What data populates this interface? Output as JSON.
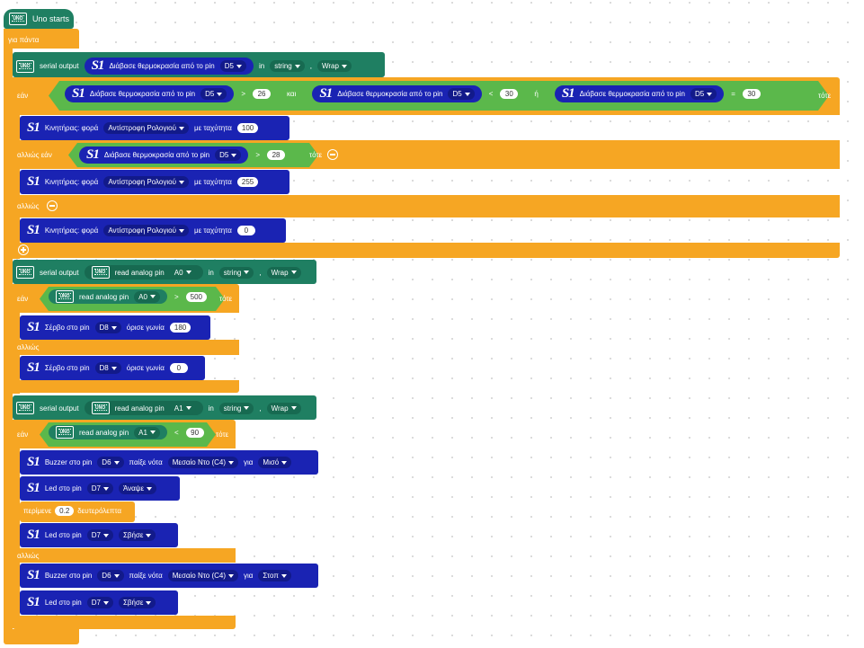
{
  "hat": {
    "label": "Uno starts",
    "board": "UNO"
  },
  "forever": "για πάντα",
  "serial1": {
    "label": "serial output",
    "read": "Διάβασε θερμοκρασία από το pin",
    "pin": "D5",
    "in": "in",
    "fmt": "string",
    "mode": "Wrap"
  },
  "if1": {
    "if": "εάν",
    "then": "τότε",
    "and": "και",
    "or": "ή",
    "c1": {
      "read": "Διάβασε θερμοκρασία από το pin",
      "pin": "D5",
      "op": ">",
      "val": "26"
    },
    "c2": {
      "read": "Διάβασε θερμοκρασία από το pin",
      "pin": "D5",
      "op": "<",
      "val": "30"
    },
    "c3": {
      "read": "Διάβασε θερμοκρασία από το pin",
      "pin": "D5",
      "op": "=",
      "val": "30"
    },
    "motor1": {
      "label": "Κινητήρας: φορά",
      "dir": "Αντίστροφη Ρολογιού",
      "speed_label": "με ταχύτητα",
      "speed": "100"
    },
    "elseif": "αλλιώς εάν",
    "c4": {
      "read": "Διάβασε θερμοκρασία από το pin",
      "pin": "D5",
      "op": ">",
      "val": "28"
    },
    "motor2": {
      "label": "Κινητήρας: φορά",
      "dir": "Αντίστροφη Ρολογιού",
      "speed_label": "με ταχύτητα",
      "speed": "255"
    },
    "else": "αλλιώς",
    "motor3": {
      "label": "Κινητήρας: φορά",
      "dir": "Αντίστροφη Ρολογιού",
      "speed_label": "με ταχύτητα",
      "speed": "0"
    }
  },
  "serial2": {
    "label": "serial output",
    "read": "read analog pin",
    "pin": "A0",
    "in": "in",
    "fmt": "string",
    "mode": "Wrap"
  },
  "if2": {
    "if": "εάν",
    "then": "τότε",
    "read": "read analog pin",
    "pin": "A0",
    "op": ">",
    "val": "500",
    "servo1": {
      "label": "Σέρβο στο pin",
      "pin": "D8",
      "angle_label": "όρισε γωνία",
      "angle": "180"
    },
    "else": "αλλιώς",
    "servo2": {
      "label": "Σέρβο στο pin",
      "pin": "D8",
      "angle_label": "όρισε γωνία",
      "angle": "0"
    }
  },
  "serial3": {
    "label": "serial output",
    "read": "read analog pin",
    "pin": "A1",
    "in": "in",
    "fmt": "string",
    "mode": "Wrap"
  },
  "if3": {
    "if": "εάν",
    "then": "τότε",
    "read": "read analog pin",
    "pin": "A1",
    "op": "<",
    "val": "90",
    "buzz1": {
      "label": "Buzzer στο pin",
      "pin": "D6",
      "play": "παίξε νότα",
      "note": "Μεσαίο Ντο (C4)",
      "for": "για",
      "dur": "Μισό"
    },
    "led1": {
      "label": "Led στο pin",
      "pin": "D7",
      "state": "Άναψε"
    },
    "wait": {
      "label": "περίμενε",
      "val": "0.2",
      "unit": "δευτερόλεπτα"
    },
    "led2": {
      "label": "Led στο pin",
      "pin": "D7",
      "state": "Σβήσε"
    },
    "else": "αλλιώς",
    "buzz2": {
      "label": "Buzzer στο pin",
      "pin": "D6",
      "play": "παίξε νότα",
      "note": "Μεσαίο Ντο (C4)",
      "for": "για",
      "dur": "Στοπ"
    },
    "led3": {
      "label": "Led στο pin",
      "pin": "D7",
      "state": "Σβήσε"
    }
  },
  "s1_text": "S1",
  "colors": {
    "orange": "#f6a623",
    "teal": "#1f7f62",
    "navy": "#1a23b3",
    "green": "#5bb84b"
  }
}
